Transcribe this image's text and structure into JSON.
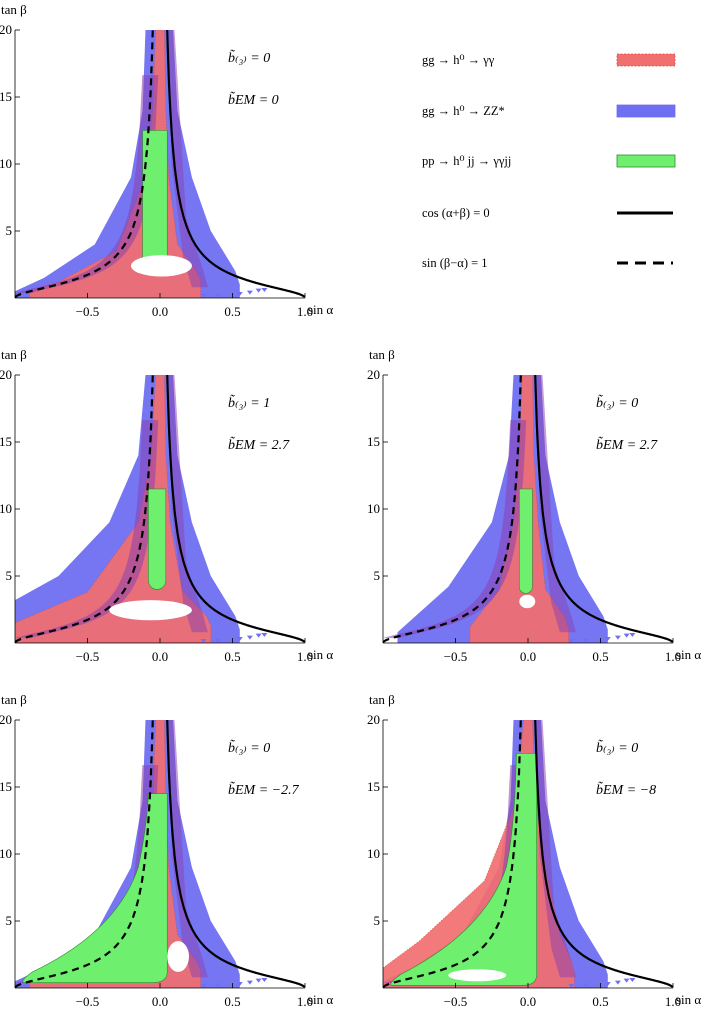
{
  "colors": {
    "gamma": "#f26f6f",
    "gamma_edge": "#d94c4c",
    "zz": "#6f6ff2",
    "jj": "#6ef06e",
    "overlap_gz": "#8a3fb0",
    "overlap_jz": "#3a9a86",
    "curve": "#000000"
  },
  "legend": [
    {
      "label": "gg → h⁰ → γγ",
      "swatch": "gamma",
      "style": "box"
    },
    {
      "label": "gg → h⁰ → ZZ*",
      "swatch": "zz",
      "style": "box"
    },
    {
      "label": "pp → h⁰ jj → γγjj",
      "swatch": "jj",
      "style": "box"
    },
    {
      "label": "cos (α+β) = 0",
      "swatch": "curve",
      "style": "solid"
    },
    {
      "label": "sin (β−α) = 1",
      "swatch": "curve",
      "style": "dashed"
    }
  ],
  "chart_data": [
    {
      "type": "area",
      "title": "",
      "xlabel": "sin α",
      "ylabel": "tan β",
      "xlim": [
        -1.0,
        1.0
      ],
      "ylim": [
        0,
        20
      ],
      "xticks": [
        "−0.5",
        "0.0",
        "0.5",
        "1.0"
      ],
      "yticks": [
        "5",
        "10",
        "15",
        "20"
      ],
      "b3": "b̃₍₃₎ = 0",
      "bem": "b̃EM = 0",
      "regions": {
        "zz": {
          "left": [
            [
              -0.1,
              20
            ],
            [
              -0.12,
              14
            ],
            [
              -0.2,
              9
            ],
            [
              -0.45,
              4
            ],
            [
              -0.8,
              1.5
            ],
            [
              -1.0,
              0.5
            ]
          ],
          "right": [
            [
              0.09,
              20
            ],
            [
              0.12,
              14
            ],
            [
              0.22,
              9
            ],
            [
              0.35,
              5
            ],
            [
              0.52,
              2
            ],
            [
              0.55,
              1
            ]
          ]
        },
        "gamma": {
          "left": [
            [
              -0.03,
              20
            ],
            [
              -0.05,
              14
            ],
            [
              -0.1,
              9
            ],
            [
              -0.3,
              3.5
            ],
            [
              -0.7,
              1.2
            ],
            [
              -0.9,
              0.5
            ]
          ],
          "right": [
            [
              0.03,
              20
            ],
            [
              0.04,
              14
            ],
            [
              0.06,
              9
            ],
            [
              0.12,
              4
            ],
            [
              0.25,
              2
            ],
            [
              0.28,
              1.3
            ]
          ]
        },
        "jj": {
          "top": 12.5,
          "left": -0.12,
          "right": 0.05,
          "bottom": 2.1
        },
        "hole": {
          "left": -0.2,
          "right": 0.22,
          "top": 3.2,
          "bottom": 1.6
        }
      }
    },
    {
      "type": "area",
      "xlabel": "sin α",
      "ylabel": "tan β",
      "xlim": [
        -1.0,
        1.0
      ],
      "ylim": [
        0,
        20
      ],
      "xticks": [
        "−0.5",
        "0.0",
        "0.5",
        "1.0"
      ],
      "yticks": [
        "5",
        "10",
        "15",
        "20"
      ],
      "b3": "b̃₍₃₎ = 1",
      "bem": "b̃EM = 2.7",
      "regions": {
        "zz": {
          "left": [
            [
              -0.1,
              20
            ],
            [
              -0.15,
              14
            ],
            [
              -0.35,
              9
            ],
            [
              -0.7,
              5
            ],
            [
              -1.0,
              3.2
            ]
          ],
          "right": [
            [
              0.09,
              20
            ],
            [
              0.12,
              14
            ],
            [
              0.22,
              9
            ],
            [
              0.35,
              5
            ],
            [
              0.52,
              2
            ],
            [
              0.55,
              1
            ]
          ]
        },
        "gamma": {
          "left": [
            [
              -0.03,
              20
            ],
            [
              -0.06,
              14
            ],
            [
              -0.15,
              9
            ],
            [
              -0.5,
              3.8
            ],
            [
              -1.0,
              1.5
            ]
          ],
          "right": [
            [
              0.03,
              20
            ],
            [
              0.04,
              14
            ],
            [
              0.07,
              9
            ],
            [
              0.15,
              4
            ],
            [
              0.32,
              2
            ],
            [
              0.35,
              1.3
            ]
          ]
        },
        "jj": {
          "top": 11.5,
          "left": -0.08,
          "right": 0.04,
          "bottom": 4.0
        },
        "hole": {
          "left": -0.35,
          "right": 0.22,
          "top": 3.2,
          "bottom": 1.7
        }
      }
    },
    {
      "type": "area",
      "xlabel": "sin α",
      "ylabel": "tan β",
      "xlim": [
        -1.0,
        1.0
      ],
      "ylim": [
        0,
        20
      ],
      "xticks": [
        "−0.5",
        "0.0",
        "0.5",
        "1.0"
      ],
      "yticks": [
        "5",
        "10",
        "15",
        "20"
      ],
      "b3": "b̃₍₃₎ = 0",
      "bem": "b̃EM = 2.7",
      "regions": {
        "zz": {
          "left": [
            [
              -0.1,
              20
            ],
            [
              -0.13,
              14
            ],
            [
              -0.25,
              9
            ],
            [
              -0.55,
              4.2
            ],
            [
              -0.9,
              0.8
            ]
          ],
          "right": [
            [
              0.09,
              20
            ],
            [
              0.12,
              14
            ],
            [
              0.22,
              9
            ],
            [
              0.35,
              5
            ],
            [
              0.52,
              2
            ],
            [
              0.55,
              1
            ]
          ]
        },
        "gamma": {
          "left": [
            [
              -0.04,
              20
            ],
            [
              -0.06,
              14
            ],
            [
              -0.1,
              9
            ],
            [
              -0.2,
              4
            ],
            [
              -0.4,
              1.2
            ]
          ],
          "right": [
            [
              0.03,
              20
            ],
            [
              0.04,
              14
            ],
            [
              0.07,
              9
            ],
            [
              0.12,
              4
            ],
            [
              0.25,
              2
            ],
            [
              0.28,
              1.1
            ]
          ]
        },
        "jj": {
          "top": 11.5,
          "left": -0.06,
          "right": 0.03,
          "bottom": 3.7
        },
        "hole": {
          "left": -0.06,
          "right": 0.05,
          "top": 3.6,
          "bottom": 2.6
        }
      }
    },
    {
      "type": "area",
      "xlabel": "sin α",
      "ylabel": "tan β",
      "xlim": [
        -1.0,
        1.0
      ],
      "ylim": [
        0,
        20
      ],
      "xticks": [
        "−0.5",
        "0.0",
        "0.5",
        "1.0"
      ],
      "yticks": [
        "5",
        "10",
        "15",
        "20"
      ],
      "b3": "b̃₍₃₎ = 0",
      "bem": "b̃EM = −2.7",
      "regions": {
        "zz": {
          "left": [
            [
              -0.1,
              20
            ],
            [
              -0.12,
              14
            ],
            [
              -0.2,
              9
            ],
            [
              -0.45,
              4
            ],
            [
              -0.8,
              1.5
            ],
            [
              -1.0,
              0.5
            ]
          ],
          "right": [
            [
              0.09,
              20
            ],
            [
              0.12,
              14
            ],
            [
              0.22,
              9
            ],
            [
              0.35,
              5
            ],
            [
              0.52,
              2
            ],
            [
              0.55,
              1
            ]
          ]
        },
        "gamma": {
          "left": [
            [
              -0.03,
              20
            ],
            [
              -0.05,
              14
            ],
            [
              -0.1,
              9
            ],
            [
              -0.3,
              3.5
            ],
            [
              -0.7,
              1.2
            ],
            [
              -0.9,
              0.5
            ]
          ],
          "right": [
            [
              0.03,
              20
            ],
            [
              0.04,
              14
            ],
            [
              0.06,
              9
            ],
            [
              0.12,
              4
            ],
            [
              0.25,
              2
            ],
            [
              0.28,
              1.3
            ]
          ]
        },
        "jj": {
          "top": 14.5,
          "left": -0.98,
          "right": 0.05,
          "bottom": 0.4
        },
        "hole": {
          "left": 0.05,
          "right": 0.2,
          "top": 3.5,
          "bottom": 1.2
        }
      }
    },
    {
      "type": "area",
      "xlabel": "sin α",
      "ylabel": "tan β",
      "xlim": [
        -1.0,
        1.0
      ],
      "ylim": [
        0,
        20
      ],
      "xticks": [
        "−0.5",
        "0.0",
        "0.5",
        "1.0"
      ],
      "yticks": [
        "5",
        "10",
        "15",
        "20"
      ],
      "b3": "b̃₍₃₎ = 0",
      "bem": "b̃EM = −8",
      "regions": {
        "zz": {
          "left": [
            [
              -0.1,
              20
            ],
            [
              -0.12,
              14
            ],
            [
              -0.2,
              9
            ],
            [
              -0.45,
              4
            ],
            [
              -0.8,
              1.5
            ],
            [
              -1.0,
              0.5
            ]
          ],
          "right": [
            [
              0.09,
              20
            ],
            [
              0.12,
              14
            ],
            [
              0.22,
              9
            ],
            [
              0.35,
              5
            ],
            [
              0.52,
              2
            ],
            [
              0.55,
              1
            ]
          ]
        },
        "gamma": {
          "left": [
            [
              -0.03,
              20
            ],
            [
              -0.08,
              14
            ],
            [
              -0.3,
              8
            ],
            [
              -0.75,
              3.5
            ],
            [
              -1.0,
              1.5
            ]
          ],
          "right": [
            [
              0.03,
              20
            ],
            [
              0.05,
              14
            ],
            [
              0.12,
              9
            ],
            [
              0.22,
              4
            ],
            [
              0.3,
              2
            ],
            [
              0.32,
              1.2
            ]
          ]
        },
        "jj": {
          "top": 17.5,
          "left": -0.98,
          "right": 0.06,
          "bottom": 0.2
        },
        "hole": {
          "left": -0.55,
          "right": -0.15,
          "top": 1.4,
          "bottom": 0.5
        }
      }
    }
  ]
}
